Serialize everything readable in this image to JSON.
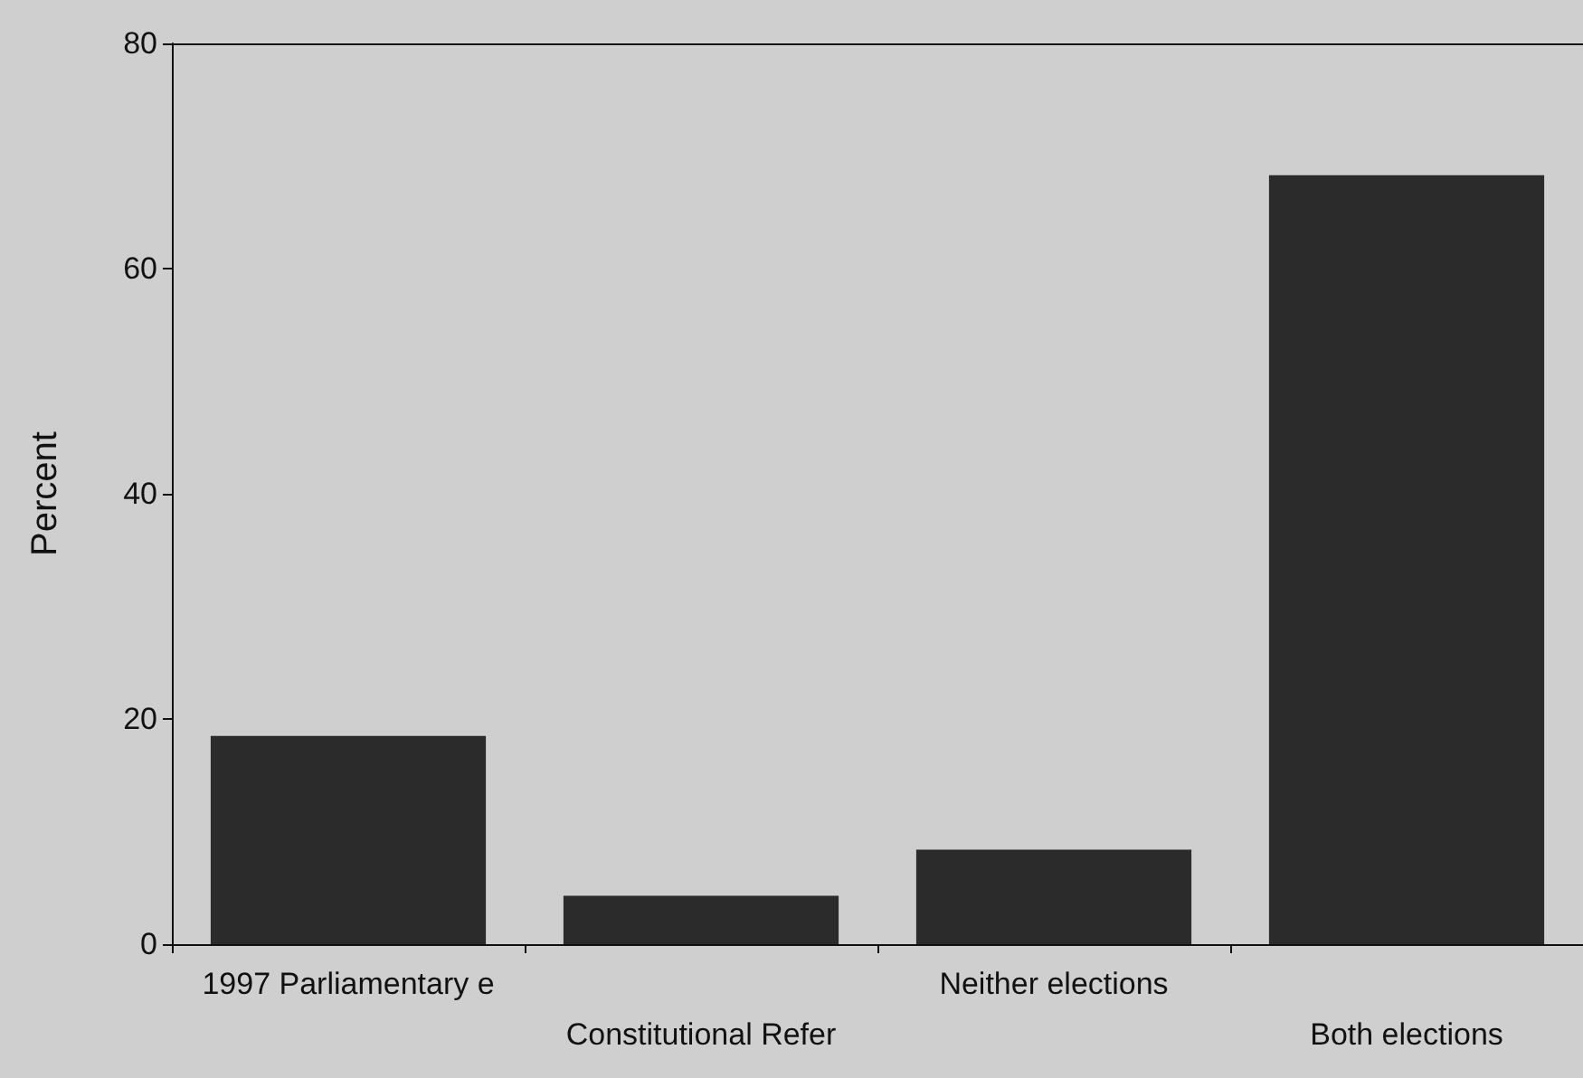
{
  "chart_data": {
    "type": "bar",
    "ylabel": "Percent",
    "categories": [
      "1997 Parliamentary e",
      "Constitutional Refer",
      "Neither elections",
      "Both elections"
    ],
    "values": [
      18.5,
      4.3,
      8.4,
      68.3
    ],
    "color": "#2b2b2b",
    "ylim": [
      0,
      80
    ],
    "yticks": [
      0,
      20,
      40,
      60,
      80
    ],
    "grid": false
  }
}
